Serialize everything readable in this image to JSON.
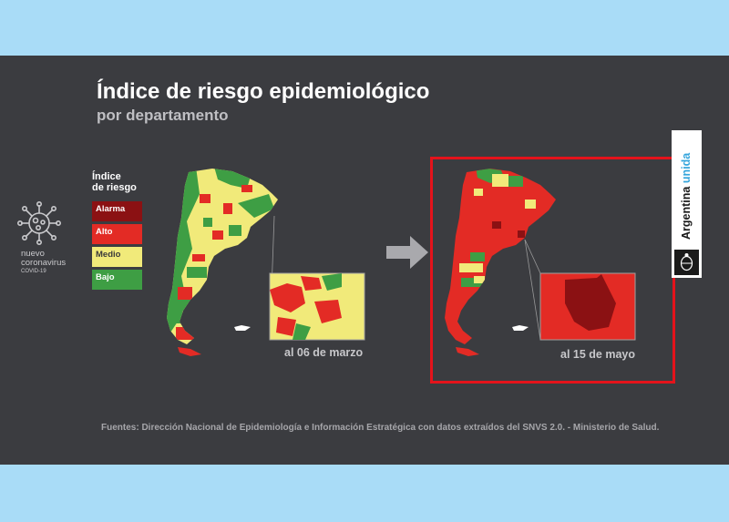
{
  "title": "Índice de riesgo epidemiológico",
  "subtitle": "por departamento",
  "covid_logo": {
    "icon": "coronavirus-icon",
    "line1": "nuevo",
    "line2": "coronavirus",
    "line3": "COVID-19"
  },
  "legend": {
    "title_line1": "Índice",
    "title_line2": "de riesgo",
    "items": [
      {
        "label": "Alarma",
        "color": "#8b1113"
      },
      {
        "label": "Alto",
        "color": "#e32b25"
      },
      {
        "label": "Medio",
        "color": "#f1ea7a"
      },
      {
        "label": "Bajo",
        "color": "#3e9e44"
      }
    ]
  },
  "maps": [
    {
      "date_label": "al 06 de marzo",
      "dominant_risk": "Medio",
      "mixed_risk": [
        "Bajo",
        "Medio",
        "Alto"
      ]
    },
    {
      "date_label": "al 15 de mayo",
      "dominant_risk": "Alto",
      "mixed_risk": [
        "Alto",
        "Alarma",
        "Medio",
        "Bajo"
      ]
    }
  ],
  "arrow_icon": "arrow-right-icon",
  "logo": {
    "text_part1": "Argentina",
    "text_part2": "unida",
    "emblem_icon": "national-emblem-icon"
  },
  "sources": "Fuentes: Dirección Nacional de Epidemiología e Información Estratégica con datos extraídos del SNVS 2.0. - Ministerio de Salud.",
  "colors": {
    "background": "#3b3c40",
    "outer_background": "#a9dcf7",
    "highlight_border": "#e4131b"
  }
}
